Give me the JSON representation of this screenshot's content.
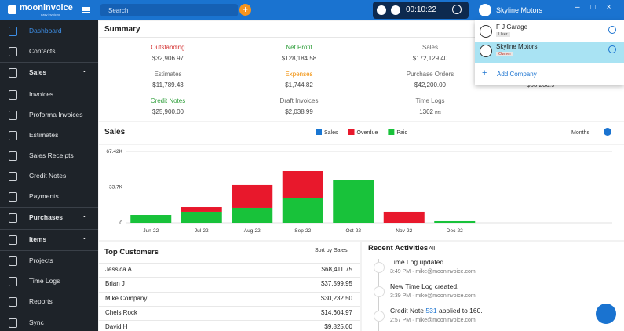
{
  "header": {
    "logo": "mooninvoice",
    "tagline": "easy invoicing",
    "search": "Search",
    "timer": "00:10:22",
    "company": "Skyline Motors"
  },
  "sidebar": [
    "Dashboard",
    "Contacts",
    "Sales",
    "Invoices",
    "Proforma Invoices",
    "Estimates",
    "Sales Receipts",
    "Credit Notes",
    "Payments",
    "Purchases",
    "Items",
    "Projects",
    "Time Logs",
    "Reports",
    "Sync"
  ],
  "summary": {
    "title": "Summary",
    "items": [
      {
        "label": "Outstanding",
        "value": "$32,906.97",
        "color": "#d32f2f"
      },
      {
        "label": "Net Profit",
        "value": "$128,184.58",
        "color": "#2e9e3a"
      },
      {
        "label": "Sales",
        "value": "$172,129.40",
        "color": "#666666"
      },
      {
        "label": "Estimates",
        "value": "$11,789.43",
        "color": "#666666"
      },
      {
        "label": "Expenses",
        "value": "$1,744.82",
        "color": "#f08c00"
      },
      {
        "label": "Purchase Orders",
        "value": "$42,200.00",
        "color": "#666666"
      },
      {
        "label": "Credit Notes",
        "value": "$25,900.00",
        "color": "#2e9e3a"
      },
      {
        "label": "Draft Invoices",
        "value": "$2,038.99",
        "color": "#666666"
      },
      {
        "label": "Time Logs",
        "value": "1302",
        "unit": "Hrs",
        "color": "#666666"
      }
    ],
    "hidden_value": "$63,206.97"
  },
  "chart_data": {
    "type": "bar",
    "title": "Sales",
    "period": "Months",
    "stacked": true,
    "categories": [
      "Jun-22",
      "Jul-22",
      "Aug-22",
      "Sep-22",
      "Oct-22",
      "Nov-22",
      "Dec-22"
    ],
    "series": [
      {
        "name": "Sales",
        "color": "#1976d2",
        "values": [
          null,
          null,
          null,
          null,
          null,
          null,
          null
        ]
      },
      {
        "name": "Paid",
        "color": "#18c23a",
        "values": [
          7400,
          10400,
          14100,
          23000,
          40700,
          null,
          1500
        ]
      },
      {
        "name": "Overdue",
        "color": "#e8182c",
        "values": [
          null,
          4400,
          21500,
          25900,
          null,
          10400,
          null
        ]
      }
    ],
    "legend_order": [
      "Sales",
      "Overdue",
      "Paid"
    ],
    "ylim": [
      0,
      67420
    ],
    "yticks": [
      0,
      {
        "value": 33700,
        "label": "33.7K"
      },
      {
        "value": 67420,
        "label": "67.42K"
      }
    ],
    "grid": true
  },
  "customers": {
    "title": "Top Customers",
    "sort": "Sort by Sales",
    "rows": [
      [
        "Jessica A",
        "$68,411.75"
      ],
      [
        "Brian J",
        "$37,599.95"
      ],
      [
        "Mike Company",
        "$30,232.50"
      ],
      [
        "Chels Rock",
        "$14,604.97"
      ],
      [
        "David H",
        "$9,825.00"
      ]
    ]
  },
  "activities": {
    "title": "Recent Activities",
    "filter": "All",
    "items": [
      {
        "text": "Time Log updated.",
        "time": "3:49 PM",
        "email": "mike@mooninvoice.com"
      },
      {
        "text": "New Time Log created.",
        "time": "3:39 PM",
        "email": "mike@mooninvoice.com"
      },
      {
        "prefix": "Credit Note",
        "link": "531",
        "suffix": "applied to 160.",
        "time": "2:57 PM",
        "email": "mike@mooninvoice.com"
      }
    ]
  },
  "dropdown": {
    "companies": [
      {
        "name": "F J Garage",
        "role": "User"
      },
      {
        "name": "Skyline Motors",
        "role": "Owner"
      }
    ],
    "add": "Add Company"
  }
}
